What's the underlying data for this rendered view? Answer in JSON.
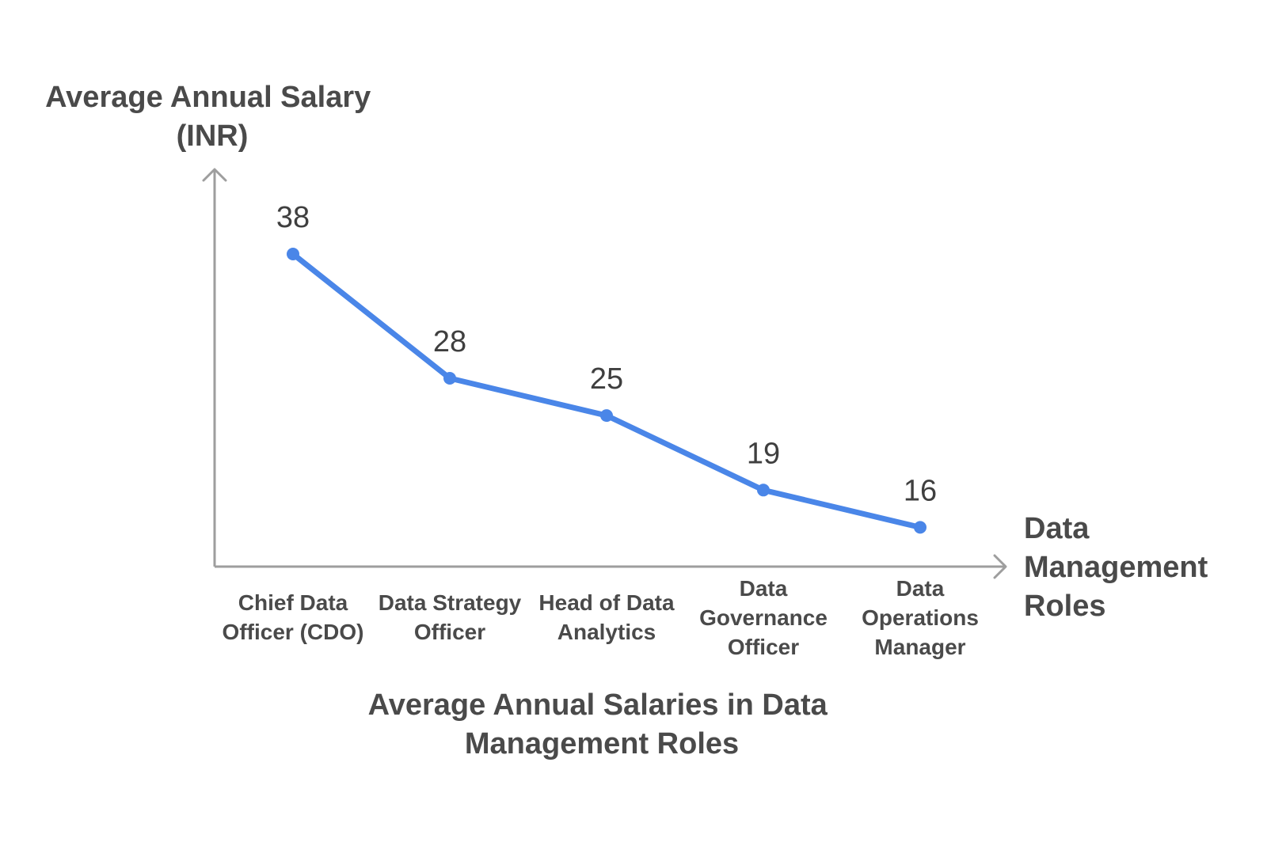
{
  "chart_data": {
    "type": "line",
    "title_lines": [
      "Average Annual Salaries in Data",
      "Management Roles"
    ],
    "ylabel_lines": [
      "Average Annual Salary",
      "(INR)"
    ],
    "xlabel_lines": [
      "Data",
      "Management",
      "Roles"
    ],
    "categories": [
      "Chief Data Officer (CDO)",
      "Data Strategy Officer",
      "Head of Data Analytics",
      "Data Governance Officer",
      "Data Operations Manager"
    ],
    "category_label_lines": [
      [
        "Chief Data",
        "Officer (CDO)"
      ],
      [
        "Data Strategy",
        "Officer"
      ],
      [
        "Head of Data",
        "Analytics"
      ],
      [
        "Data",
        "Governance",
        "Officer"
      ],
      [
        "Data",
        "Operations",
        "Manager"
      ]
    ],
    "series": [
      {
        "values": [
          38,
          28,
          25,
          19,
          16
        ],
        "color": "#4a86e8"
      }
    ],
    "data_labels": [
      "38",
      "28",
      "25",
      "19",
      "16"
    ],
    "grid": false,
    "legend": "none",
    "axis_color": "#9e9e9e",
    "text_color": "#4a4a4a"
  }
}
